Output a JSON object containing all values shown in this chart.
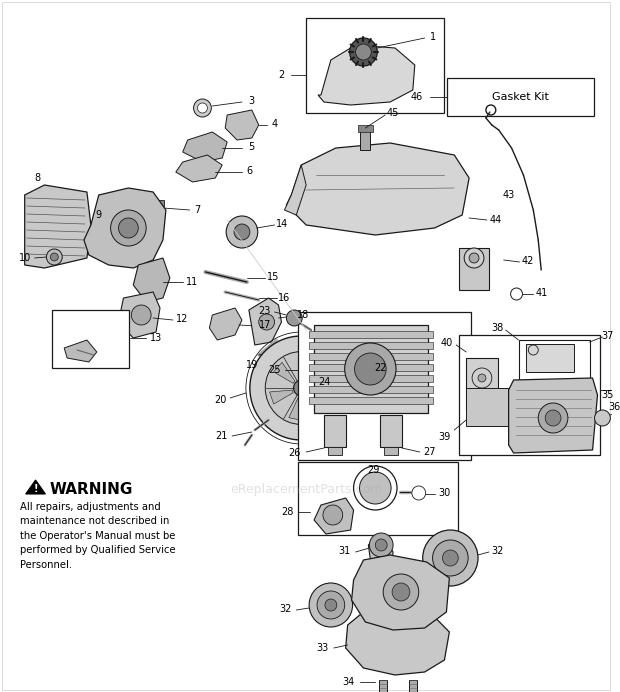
{
  "bg_color": "#ffffff",
  "fig_width": 6.2,
  "fig_height": 6.92,
  "dpi": 100,
  "watermark": "eReplacementParts.com",
  "warning_title": "WARNING",
  "warning_text": "All repairs, adjustments and\nmaintenance not described in\nthe Operator's Manual must be\nperformed by Qualified Service\nPersonnel.",
  "gasket_text": "Gasket Kit"
}
